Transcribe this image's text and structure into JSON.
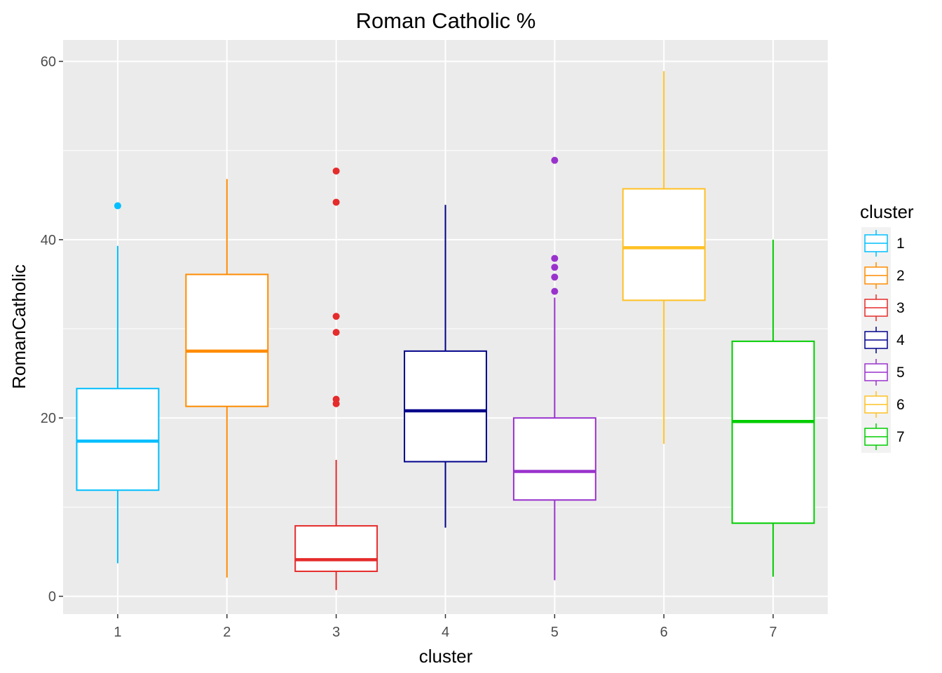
{
  "chart_data": {
    "type": "boxplot",
    "title": "Roman Catholic %",
    "xlabel": "cluster",
    "ylabel": "RomanCatholic",
    "ylim": [
      -2,
      62.4
    ],
    "y_ticks": [
      0,
      20,
      40,
      60
    ],
    "y_minor_ticks": [
      10,
      30,
      50
    ],
    "grid": true,
    "categories": [
      "1",
      "2",
      "3",
      "4",
      "5",
      "6",
      "7"
    ],
    "legend": {
      "title": "cluster",
      "position": "right",
      "entries": [
        "1",
        "2",
        "3",
        "4",
        "5",
        "6",
        "7"
      ]
    },
    "series": [
      {
        "name": "1",
        "color": "#00BFFF",
        "whisker_low": 3.7,
        "q1": 11.9,
        "median": 17.4,
        "q3": 23.3,
        "whisker_high": 39.3,
        "outliers": [
          43.8
        ]
      },
      {
        "name": "2",
        "color": "#FF8C00",
        "whisker_low": 2.1,
        "q1": 21.3,
        "median": 27.5,
        "q3": 36.1,
        "whisker_high": 46.8,
        "outliers": []
      },
      {
        "name": "3",
        "color": "#E52B2B",
        "whisker_low": 0.7,
        "q1": 2.8,
        "median": 4.1,
        "q3": 7.9,
        "whisker_high": 15.3,
        "outliers": [
          47.7,
          44.2,
          31.4,
          29.6,
          22.1,
          21.6
        ]
      },
      {
        "name": "4",
        "color": "#00008B",
        "whisker_low": 7.7,
        "q1": 15.1,
        "median": 20.8,
        "q3": 27.5,
        "whisker_high": 43.9,
        "outliers": []
      },
      {
        "name": "5",
        "color": "#9932CC",
        "whisker_low": 1.8,
        "q1": 10.8,
        "median": 14.0,
        "q3": 20.0,
        "whisker_high": 33.5,
        "outliers": [
          48.9,
          37.9,
          36.9,
          35.8,
          34.2
        ]
      },
      {
        "name": "6",
        "color": "#FFC125",
        "whisker_low": 17.1,
        "q1": 33.2,
        "median": 39.1,
        "q3": 45.7,
        "whisker_high": 58.9,
        "outliers": []
      },
      {
        "name": "7",
        "color": "#00CD00",
        "whisker_low": 2.2,
        "q1": 8.2,
        "median": 19.6,
        "q3": 28.6,
        "whisker_high": 40.0,
        "outliers": []
      }
    ]
  }
}
